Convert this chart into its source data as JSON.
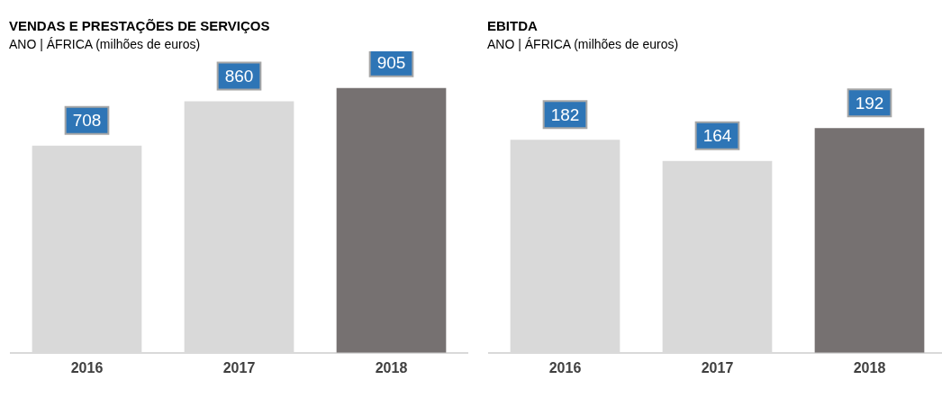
{
  "chart_data": [
    {
      "type": "bar",
      "title": "VENDAS E PRESTAÇÕES DE SERVIÇOS",
      "subtitle": "ANO | ÁFRICA (milhões de euros)",
      "categories": [
        "2016",
        "2017",
        "2018"
      ],
      "values": [
        708,
        860,
        905
      ],
      "colors": [
        "#d9d9d9",
        "#d9d9d9",
        "#767171"
      ],
      "data_labels": true
    },
    {
      "type": "bar",
      "title": "EBITDA",
      "subtitle": "ANO | ÁFRICA (milhões de euros)",
      "categories": [
        "2016",
        "2017",
        "2018"
      ],
      "values": [
        182,
        164,
        192
      ],
      "colors": [
        "#d9d9d9",
        "#d9d9d9",
        "#767171"
      ],
      "data_labels": true
    }
  ]
}
